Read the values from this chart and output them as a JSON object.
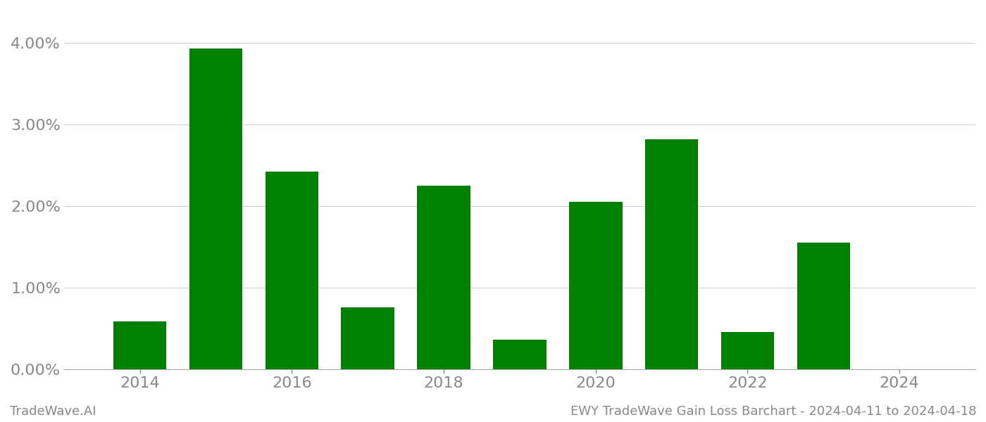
{
  "years": [
    2014,
    2015,
    2016,
    2017,
    2018,
    2019,
    2020,
    2021,
    2022,
    2023,
    2024
  ],
  "values": [
    0.0058,
    0.0393,
    0.0242,
    0.0076,
    0.0225,
    0.0036,
    0.0205,
    0.0282,
    0.0045,
    0.0155,
    0.0
  ],
  "bar_color": "#008000",
  "background_color": "#ffffff",
  "ylim": [
    0,
    0.044
  ],
  "yticks": [
    0.0,
    0.01,
    0.02,
    0.03,
    0.04
  ],
  "xticks": [
    2014,
    2016,
    2018,
    2020,
    2022,
    2024
  ],
  "xlabel": "",
  "ylabel": "",
  "footer_left": "TradeWave.AI",
  "footer_right": "EWY TradeWave Gain Loss Barchart - 2024-04-11 to 2024-04-18",
  "grid_color": "#cccccc",
  "tick_color": "#888888",
  "tick_fontsize": 16,
  "footer_fontsize": 13,
  "bar_width": 0.7
}
